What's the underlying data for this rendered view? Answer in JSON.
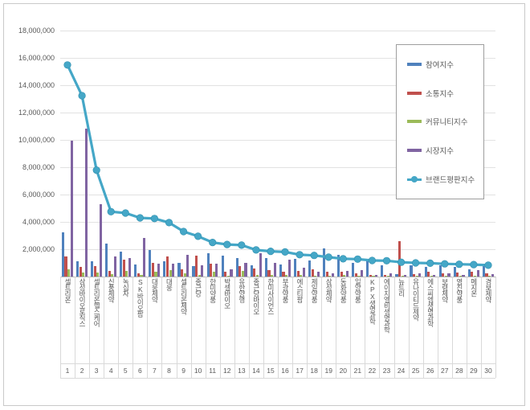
{
  "chart_data": {
    "type": "bar",
    "subtype": "grouped-bars-with-line-overlay",
    "title": "",
    "xlabel": "",
    "ylabel": "",
    "grid": true,
    "legend_position": "upper-right-inside",
    "background_color": "#ffffff",
    "gridline_color": "#e2e2e2",
    "text_color": "#595959",
    "categories": [
      {
        "rank": "1",
        "name": "셀트리온"
      },
      {
        "rank": "2",
        "name": "삼성바이오로직스"
      },
      {
        "rank": "3",
        "name": "셀트리온헬스케어"
      },
      {
        "rank": "4",
        "name": "신풍제약"
      },
      {
        "rank": "5",
        "name": "녹십자"
      },
      {
        "rank": "6",
        "name": "SK바이오팜"
      },
      {
        "rank": "7",
        "name": "대웅제약"
      },
      {
        "rank": "8",
        "name": "대웅"
      },
      {
        "rank": "9",
        "name": "셀트리온제약"
      },
      {
        "rank": "10",
        "name": "종근당"
      },
      {
        "rank": "11",
        "name": "한미약품"
      },
      {
        "rank": "12",
        "name": "박셀바이오"
      },
      {
        "rank": "13",
        "name": "유한양행"
      },
      {
        "rank": "14",
        "name": "종근당바이오"
      },
      {
        "rank": "15",
        "name": "한미사이언스"
      },
      {
        "rank": "16",
        "name": "부광약품"
      },
      {
        "rank": "17",
        "name": "에스티팜"
      },
      {
        "rank": "18",
        "name": "제일약품"
      },
      {
        "rank": "19",
        "name": "삼성제약"
      },
      {
        "rank": "20",
        "name": "동화약품"
      },
      {
        "rank": "21",
        "name": "일양약품"
      },
      {
        "rank": "22",
        "name": "KPX생명과학"
      },
      {
        "rank": "23",
        "name": "에이치엘비생명과학"
      },
      {
        "rank": "24",
        "name": "뉴트리"
      },
      {
        "rank": "25",
        "name": "유나이티드제약"
      },
      {
        "rank": "26",
        "name": "에스씨엠생명과학"
      },
      {
        "rank": "27",
        "name": "보령제약"
      },
      {
        "rank": "28",
        "name": "영진약품"
      },
      {
        "rank": "29",
        "name": "메지온"
      },
      {
        "rank": "30",
        "name": "경보제약"
      }
    ],
    "series": [
      {
        "name": "참여지수",
        "type": "bar",
        "color": "#4f81bd",
        "values": [
          3250000,
          1120000,
          1100000,
          2400000,
          1810000,
          900000,
          1960000,
          1120000,
          980000,
          750000,
          1700000,
          1550000,
          1370000,
          850000,
          1350000,
          900000,
          1310000,
          1180000,
          2040000,
          1610000,
          980000,
          1310000,
          820000,
          200000,
          850000,
          690000,
          820000,
          690000,
          530000,
          770000
        ]
      },
      {
        "name": "소통지수",
        "type": "bar",
        "color": "#c0504d",
        "values": [
          1450000,
          700000,
          760000,
          430000,
          1250000,
          240000,
          980000,
          1450000,
          530000,
          1550000,
          950000,
          330000,
          780000,
          600000,
          450000,
          350000,
          430000,
          530000,
          330000,
          330000,
          240000,
          140000,
          140000,
          2590000,
          150000,
          370000,
          240000,
          290000,
          370000,
          240000
        ]
      },
      {
        "name": "커뮤니티지수",
        "type": "bar",
        "color": "#9bbb59",
        "values": [
          550000,
          320000,
          290000,
          190000,
          430000,
          100000,
          330000,
          490000,
          240000,
          130000,
          330000,
          80000,
          430000,
          100000,
          120000,
          100000,
          100000,
          80000,
          80000,
          100000,
          80000,
          50000,
          50000,
          50000,
          50000,
          50000,
          50000,
          50000,
          50000,
          50000
        ]
      },
      {
        "name": "시장지수",
        "type": "bar",
        "color": "#8064a2",
        "values": [
          9950000,
          10850000,
          5280000,
          1450000,
          1350000,
          2850000,
          950000,
          920000,
          1570000,
          850000,
          950000,
          530000,
          980000,
          1700000,
          1000000,
          1250000,
          630000,
          330000,
          240000,
          430000,
          470000,
          140000,
          240000,
          100000,
          250000,
          120000,
          240000,
          140000,
          490000,
          150000
        ]
      },
      {
        "name": "브랜드평판지수",
        "type": "line",
        "color": "#45a7c7",
        "values": [
          15500000,
          13250000,
          7800000,
          4750000,
          4650000,
          4300000,
          4250000,
          3950000,
          3300000,
          2950000,
          2500000,
          2350000,
          2300000,
          1950000,
          1850000,
          1800000,
          1600000,
          1550000,
          1420000,
          1300000,
          1280000,
          1180000,
          1160000,
          1050000,
          1000000,
          980000,
          930000,
          900000,
          880000,
          830000
        ]
      }
    ],
    "y_axis": {
      "min": 0,
      "max": 18000000,
      "step": 2000000,
      "tick_labels": [
        "2,000,000",
        "4,000,000",
        "6,000,000",
        "8,000,000",
        "10,000,000",
        "12,000,000",
        "14,000,000",
        "16,000,000",
        "18,000,000"
      ]
    }
  }
}
